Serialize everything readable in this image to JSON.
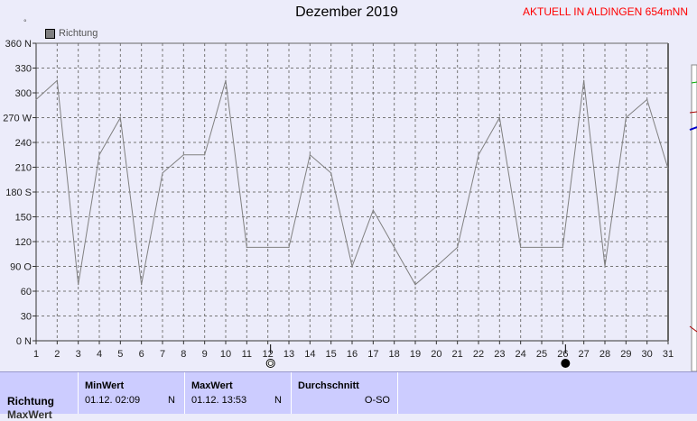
{
  "header": {
    "title": "Dezember 2019",
    "subtitle": "AKTUELL IN ALDINGEN 654mNN",
    "legend_label": "Richtung",
    "tiny_mark": "°"
  },
  "chart_data": {
    "type": "line",
    "title": "Dezember 2019",
    "x": [
      1,
      2,
      3,
      4,
      5,
      6,
      7,
      8,
      9,
      10,
      11,
      12,
      13,
      14,
      15,
      16,
      17,
      18,
      19,
      20,
      21,
      22,
      23,
      24,
      25,
      26,
      27,
      28,
      29,
      30,
      31
    ],
    "series": [
      {
        "name": "Richtung",
        "values": [
          292,
          315,
          68,
          225,
          270,
          68,
          203,
          225,
          225,
          315,
          113,
          113,
          113,
          225,
          203,
          90,
          158,
          113,
          68,
          90,
          113,
          225,
          270,
          113,
          113,
          113,
          315,
          90,
          270,
          292,
          208
        ]
      }
    ],
    "ylim": [
      0,
      360
    ],
    "yticks": [
      "0 N",
      "30",
      "60",
      "90 O",
      "120",
      "150",
      "180 S",
      "210",
      "240",
      "270 W",
      "300",
      "330",
      "360 N"
    ],
    "grid": true,
    "line_color": "#808080",
    "moon_markers": [
      {
        "day": 12,
        "phase": "first-quarter"
      },
      {
        "day": 26,
        "phase": "new-moon"
      }
    ]
  },
  "panel": {
    "row_label": "Richtung",
    "row_label2": "MaxWert",
    "min": {
      "header": "MinWert",
      "date": "01.12.  02:09",
      "dir": "N"
    },
    "max": {
      "header": "MaxWert",
      "date": "01.12.  13:53",
      "dir": "N"
    },
    "avg": {
      "header": "Durchschnitt",
      "value": "O-SO"
    }
  }
}
